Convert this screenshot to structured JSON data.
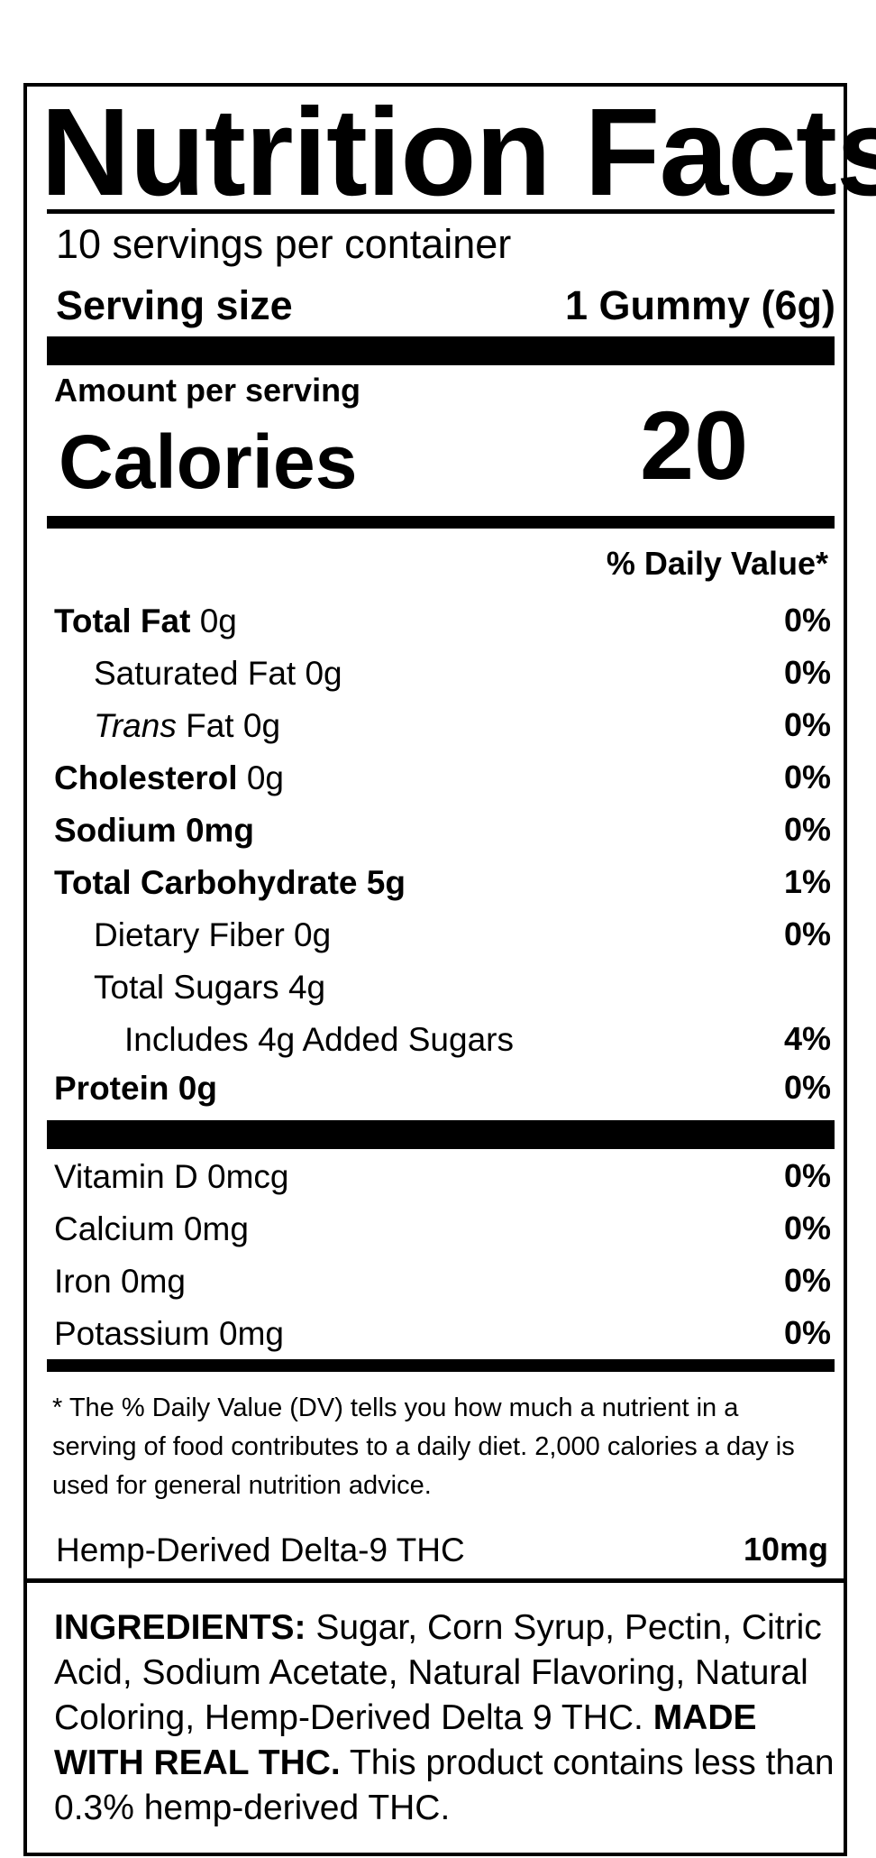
{
  "label": {
    "title": "Nutrition Facts",
    "servings_per_container": "10 servings per container",
    "serving_size_label": "Serving size",
    "serving_size_value": "1 Gummy (6g)",
    "amount_per_serving": "Amount per serving",
    "calories_label": "Calories",
    "calories_value": "20",
    "dv_header": "% Daily Value*",
    "nutrients": [
      {
        "bold": "Total Fat",
        "rest": " 0g",
        "dv": "0%"
      },
      {
        "name": "Saturated Fat 0g",
        "dv": "0%"
      },
      {
        "italic": "Trans",
        "rest": " Fat 0g",
        "dv": "0%"
      },
      {
        "bold": "Cholesterol",
        "rest": " 0g",
        "dv": "0%"
      },
      {
        "bold": "Sodium 0mg",
        "dv": "0%"
      },
      {
        "bold": "Total Carbohydrate 5g",
        "dv": "1%"
      },
      {
        "name": "Dietary Fiber 0g",
        "dv": "0%"
      },
      {
        "name": "Total Sugars 4g",
        "dv": ""
      },
      {
        "name": "Includes 4g Added Sugars",
        "dv": "4%"
      },
      {
        "bold": "Protein 0g",
        "dv": "0%"
      }
    ],
    "vitamins": [
      {
        "name": "Vitamin D 0mcg",
        "dv": "0%"
      },
      {
        "name": "Calcium 0mg",
        "dv": "0%"
      },
      {
        "name": "Iron 0mg",
        "dv": "0%"
      },
      {
        "name": "Potassium 0mg",
        "dv": "0%"
      }
    ],
    "footnote": "* The % Daily Value (DV) tells you how much a nutrient in a serving of food contributes to a daily diet. 2,000 calories a day is used for general nutrition advice.",
    "thc_label": "Hemp-Derived Delta-9 THC",
    "thc_value": "10mg"
  },
  "ingredients": {
    "heading": "INGREDIENTS:",
    "list": " Sugar, Corn Syrup, Pectin, Citric Acid, Sodium Acetate, Natural Flavoring, Natural Coloring, Hemp-Derived Delta 9 THC.",
    "statement_bold": "MADE WITH REAL THC.",
    "statement": " This product contains less than 0.3% hemp-derived THC."
  }
}
